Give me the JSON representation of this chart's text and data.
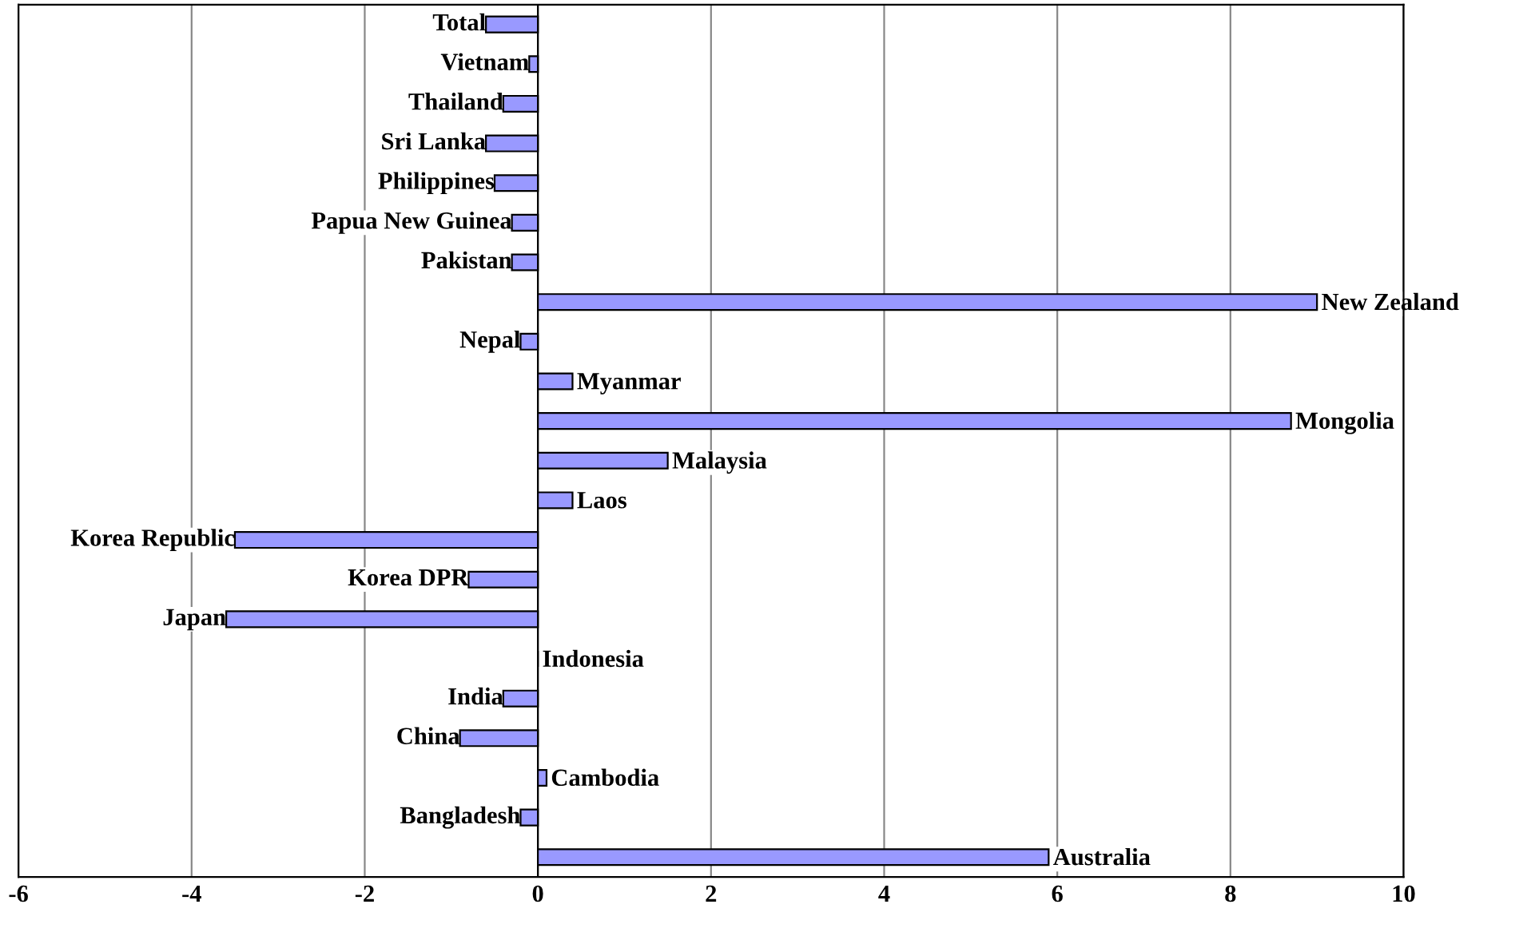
{
  "chart_data": {
    "type": "bar",
    "orientation": "horizontal",
    "categories": [
      "Total",
      "Vietnam",
      "Thailand",
      "Sri Lanka",
      "Philippines",
      "Papua New Guinea",
      "Pakistan",
      "New Zealand",
      "Nepal",
      "Myanmar",
      "Mongolia",
      "Malaysia",
      "Laos",
      "Korea Republic",
      "Korea DPR",
      "Japan",
      "Indonesia",
      "India",
      "China",
      "Cambodia",
      "Bangladesh",
      "Australia"
    ],
    "values": [
      -0.6,
      -0.1,
      -0.4,
      -0.6,
      -0.5,
      -0.3,
      -0.3,
      9.0,
      -0.2,
      0.4,
      8.7,
      1.5,
      0.4,
      -3.5,
      -0.8,
      -3.6,
      0,
      -0.4,
      -0.9,
      0.1,
      -0.2,
      5.9
    ],
    "color": "#9999ff",
    "xlim": [
      -6,
      10
    ],
    "xticks": [
      -6,
      -4,
      -2,
      0,
      2,
      4,
      6,
      8,
      10
    ],
    "grid": "x",
    "tick_labels": "x"
  }
}
